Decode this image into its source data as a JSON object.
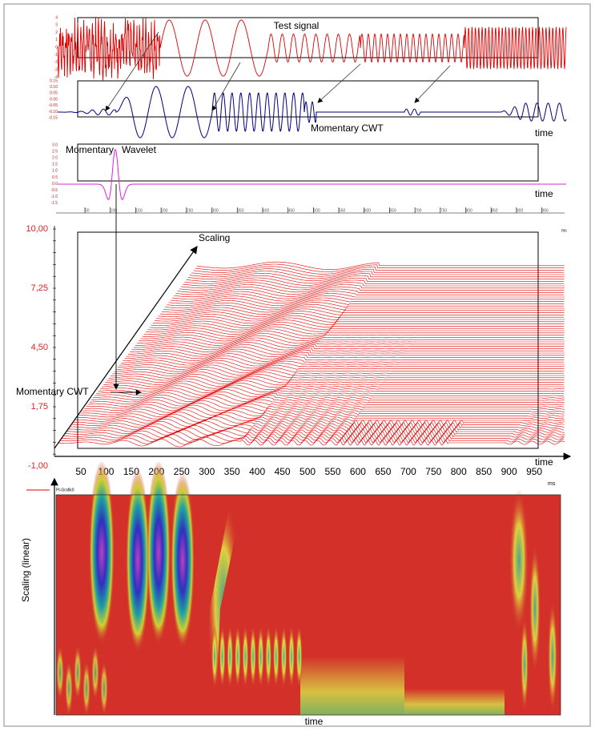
{
  "signal": {
    "title": "Test signal",
    "yticks": [
      "4",
      "3",
      "2",
      "1",
      "0",
      "-1",
      "-2",
      "-3",
      "-4"
    ]
  },
  "cwt": {
    "label": "Momentary CWT",
    "xlabel": "time",
    "yticks": [
      "0.15",
      "0.10",
      "0.05",
      "0.00",
      "-0.05",
      "-0.10",
      "-0.15"
    ]
  },
  "wavelet": {
    "label": "Momentary   Wavelet",
    "xlabel": "time",
    "yticks": [
      "3.0",
      "2.5",
      "2.0",
      "1.5",
      "1.0",
      "0.5",
      "0.0",
      "-0.5",
      "-1.0",
      "-1.5"
    ]
  },
  "ruler": {
    "unit": "ms"
  },
  "waterfall": {
    "yticks": [
      "10,00",
      "7,25",
      "4,50",
      "1,75",
      "-1,00"
    ],
    "scaling": "Scaling",
    "annotation": "Momentary CWT",
    "xlabel": "time",
    "xticks": [
      "50",
      "100",
      "150",
      "200",
      "250",
      "300",
      "350",
      "400",
      "450",
      "500",
      "550",
      "600",
      "650",
      "700",
      "750",
      "800",
      "850",
      "900",
      "950"
    ],
    "unit": "ms",
    "legend": "Pt-Grafik0"
  },
  "scalogram": {
    "ylabel": "Scaling (linear)",
    "xlabel": "time"
  }
}
